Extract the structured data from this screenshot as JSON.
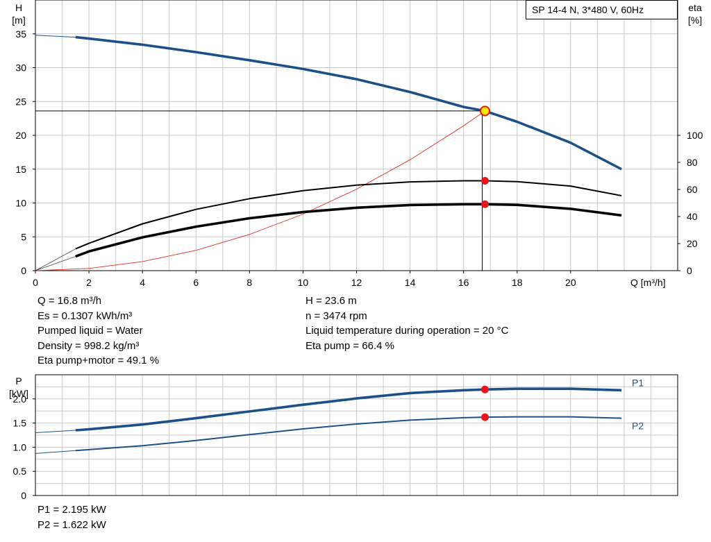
{
  "chart_data": [
    {
      "type": "line",
      "title": "SP 14-4 N, 3*480 V, 60Hz",
      "xlabel": "Q [m³/h]",
      "ylabel": "H\n[m]",
      "y2label": "eta\n[%]",
      "xlim": [
        0,
        24
      ],
      "ylim": [
        0,
        40
      ],
      "y2lim": [
        0,
        200
      ],
      "xticks": [
        0,
        2,
        4,
        6,
        8,
        10,
        12,
        14,
        16,
        18,
        20
      ],
      "yticks": [
        0,
        5,
        10,
        15,
        20,
        25,
        30,
        35
      ],
      "y2ticks": [
        0,
        20,
        40,
        60,
        80,
        100
      ],
      "grid": true,
      "series": [
        {
          "id": "head",
          "axis": "y",
          "color": "#1b5088",
          "x": [
            0,
            1.5,
            2,
            4,
            6,
            8,
            10,
            12,
            14,
            16,
            16.8,
            18,
            20,
            21.9
          ],
          "values": [
            34.8,
            34.5,
            34.3,
            33.4,
            32.3,
            31.1,
            29.8,
            28.3,
            26.4,
            24.2,
            23.6,
            22.0,
            18.9,
            15.0
          ]
        },
        {
          "id": "eta-pump",
          "axis": "y2",
          "color": "#000000",
          "x": [
            0,
            1.5,
            2,
            4,
            6,
            8,
            10,
            12,
            14,
            16,
            16.8,
            18,
            20,
            21.9
          ],
          "values": [
            0,
            16.1,
            20.2,
            34.6,
            45.3,
            53.2,
            59.1,
            63.2,
            65.6,
            66.4,
            66.4,
            65.8,
            62.5,
            55.4
          ]
        },
        {
          "id": "eta-pump-motor",
          "axis": "y2",
          "color": "#000000",
          "x": [
            0,
            1.5,
            2,
            4,
            6,
            8,
            10,
            12,
            14,
            16,
            16.8,
            18,
            20,
            21.9
          ],
          "values": [
            0,
            10.5,
            14.2,
            24.6,
            32.5,
            38.7,
            43.3,
            46.5,
            48.5,
            49.1,
            49.1,
            48.6,
            45.7,
            40.8
          ]
        },
        {
          "id": "system-curve",
          "axis": "y",
          "color": "#e0301e",
          "x": [
            0,
            2,
            4,
            6,
            8,
            10,
            12,
            14,
            16,
            16.8
          ],
          "values": [
            0,
            0.33,
            1.34,
            3.01,
            5.35,
            8.36,
            12.04,
            16.39,
            21.41,
            23.6
          ]
        }
      ],
      "duty_point": {
        "x": 16.8,
        "y": 23.6,
        "eta_pump": 66.4,
        "eta_pump_motor": 49.1
      }
    },
    {
      "type": "line",
      "ylabel": "P\n[kW]",
      "xlim": [
        0,
        24
      ],
      "ylim": [
        0,
        2.5
      ],
      "yticks": [
        0,
        0.5,
        1.0,
        1.5,
        2.0
      ],
      "yticklabels": [
        "0",
        "0.5",
        "1.0",
        "1.5",
        "2.0"
      ],
      "grid": true,
      "series": [
        {
          "name": "P1",
          "color": "#1b5088",
          "x": [
            0,
            1.5,
            2,
            4,
            6,
            8,
            10,
            12,
            14,
            16,
            16.8,
            18,
            20,
            21.9
          ],
          "values": [
            1.3,
            1.35,
            1.37,
            1.47,
            1.6,
            1.74,
            1.88,
            2.01,
            2.12,
            2.18,
            2.195,
            2.21,
            2.21,
            2.18
          ]
        },
        {
          "name": "P2",
          "color": "#1b5088",
          "x": [
            0,
            1.5,
            2,
            4,
            6,
            8,
            10,
            12,
            14,
            16,
            16.8,
            18,
            20,
            21.9
          ],
          "values": [
            0.87,
            0.93,
            0.95,
            1.03,
            1.14,
            1.26,
            1.38,
            1.48,
            1.56,
            1.61,
            1.622,
            1.63,
            1.63,
            1.6
          ]
        }
      ],
      "duty_point": {
        "x": 16.8,
        "p1": 2.195,
        "p2": 1.622
      }
    }
  ],
  "info": {
    "left": [
      "Q = 16.8 m³/h",
      "Es = 0.1307 kWh/m³",
      "Pumped liquid = Water",
      "Density = 998.2 kg/m³",
      "Eta pump+motor = 49.1 %"
    ],
    "right": [
      "H = 23.6 m",
      "n = 3474 rpm",
      "Liquid temperature during operation = 20 °C",
      "Eta pump = 66.4 %"
    ],
    "power": [
      "P1 = 2.195 kW",
      "P2 = 1.622 kW"
    ]
  },
  "colors": {
    "grid": "#c8c8c8",
    "curve_blue": "#1b5088",
    "marker_red": "#e8161b",
    "marker_yellow": "#ffe900"
  }
}
